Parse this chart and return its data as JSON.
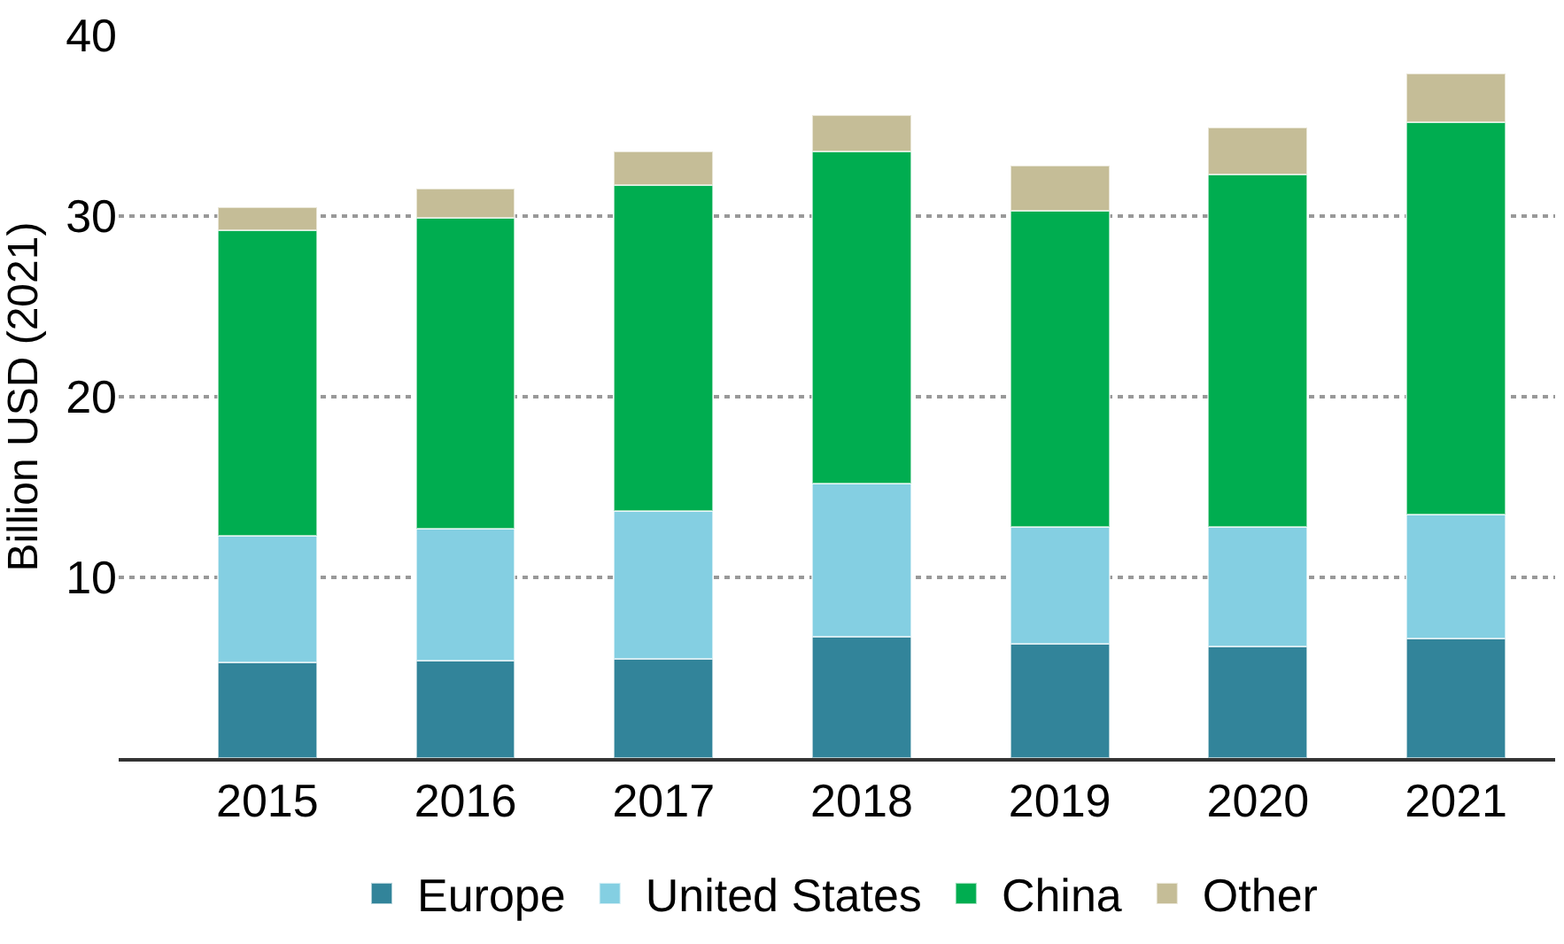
{
  "chart_data": {
    "type": "bar",
    "stacked": true,
    "ylabel": "Billion USD (2021)",
    "categories": [
      "2015",
      "2016",
      "2017",
      "2018",
      "2019",
      "2020",
      "2021"
    ],
    "series": [
      {
        "name": "Europe",
        "color": "#32849a",
        "values": [
          5.3,
          5.4,
          5.5,
          6.7,
          6.3,
          6.2,
          6.6
        ]
      },
      {
        "name": "United States",
        "color": "#84cfe2",
        "values": [
          7.0,
          7.3,
          8.2,
          8.5,
          6.5,
          6.6,
          6.9
        ]
      },
      {
        "name": "China",
        "color": "#00ad50",
        "values": [
          16.9,
          17.2,
          18.0,
          18.4,
          17.5,
          19.5,
          21.7
        ]
      },
      {
        "name": "Other",
        "color": "#c5bd97",
        "values": [
          1.3,
          1.6,
          1.9,
          2.0,
          2.5,
          2.6,
          2.7
        ]
      }
    ],
    "ylim": [
      0,
      40
    ],
    "yticks": [
      10,
      20,
      30,
      40
    ],
    "grid": "y",
    "legend": "bottom"
  }
}
